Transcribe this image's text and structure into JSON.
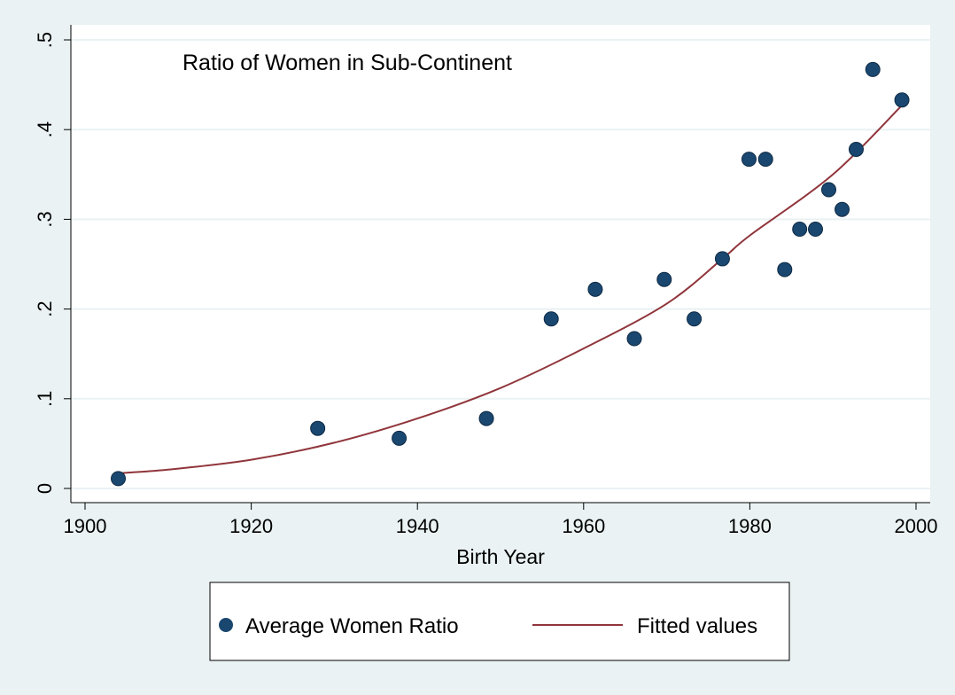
{
  "chart_data": {
    "type": "scatter",
    "annotation": "Ratio of Women in Sub-Continent",
    "xlabel": "Birth Year",
    "ylabel": "",
    "xlim": [
      1900,
      2000
    ],
    "ylim": [
      0,
      0.5
    ],
    "x_ticks": [
      1900,
      1920,
      1940,
      1960,
      1980,
      2000
    ],
    "x_tick_labels": [
      "1900",
      "1920",
      "1940",
      "1960",
      "1980",
      "2000"
    ],
    "y_ticks": [
      0,
      0.1,
      0.2,
      0.3,
      0.4,
      0.5
    ],
    "y_tick_labels": [
      "0",
      ".1",
      ".2",
      ".3",
      ".4",
      ".5"
    ],
    "grid": true,
    "legend_position": "bottom",
    "series": [
      {
        "name": "Average Women Ratio",
        "kind": "scatter",
        "color": "#1a476f",
        "points": [
          {
            "x": 1904,
            "y": 0.011
          },
          {
            "x": 1928,
            "y": 0.067
          },
          {
            "x": 1937.8,
            "y": 0.056
          },
          {
            "x": 1948.3,
            "y": 0.078
          },
          {
            "x": 1956.1,
            "y": 0.189
          },
          {
            "x": 1961.4,
            "y": 0.222
          },
          {
            "x": 1966.1,
            "y": 0.167
          },
          {
            "x": 1969.7,
            "y": 0.233
          },
          {
            "x": 1973.3,
            "y": 0.189
          },
          {
            "x": 1976.7,
            "y": 0.256
          },
          {
            "x": 1979.9,
            "y": 0.367
          },
          {
            "x": 1981.9,
            "y": 0.367
          },
          {
            "x": 1984.2,
            "y": 0.244
          },
          {
            "x": 1986,
            "y": 0.289
          },
          {
            "x": 1987.9,
            "y": 0.289
          },
          {
            "x": 1989.5,
            "y": 0.333
          },
          {
            "x": 1991.1,
            "y": 0.311
          },
          {
            "x": 1992.8,
            "y": 0.378
          },
          {
            "x": 1994.8,
            "y": 0.467
          },
          {
            "x": 1998.3,
            "y": 0.433
          }
        ]
      },
      {
        "name": "Fitted values",
        "kind": "line",
        "color": "#90353b",
        "points": [
          {
            "x": 1904,
            "y": 0.017
          },
          {
            "x": 1910,
            "y": 0.021
          },
          {
            "x": 1920,
            "y": 0.032
          },
          {
            "x": 1930,
            "y": 0.051
          },
          {
            "x": 1940,
            "y": 0.078
          },
          {
            "x": 1950,
            "y": 0.112
          },
          {
            "x": 1960,
            "y": 0.156
          },
          {
            "x": 1970,
            "y": 0.206
          },
          {
            "x": 1976.7,
            "y": 0.256
          },
          {
            "x": 1980,
            "y": 0.282
          },
          {
            "x": 1990,
            "y": 0.35
          },
          {
            "x": 1998.3,
            "y": 0.427
          }
        ]
      }
    ]
  }
}
